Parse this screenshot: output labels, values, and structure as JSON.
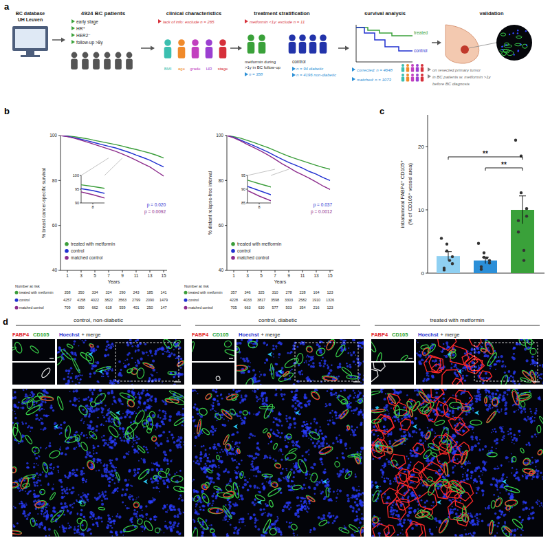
{
  "panel_labels": [
    "a",
    "b",
    "c",
    "d"
  ],
  "flow": {
    "database": [
      "BC database",
      "UH Leuven"
    ],
    "cohort": {
      "title": "4924 BC patients",
      "criteria": [
        "early stage",
        "HR⁺",
        "HER2⁻",
        "follow-up >8y"
      ]
    },
    "steps": [
      "clinical characteristics",
      "treatment stratification",
      "survival analysis",
      "validation"
    ],
    "clinical": {
      "exclusion": "lack of info: exclude n = 265",
      "variables": [
        "BMI",
        "age",
        "grade",
        "HR",
        "stage"
      ]
    },
    "stratification": {
      "exclusion": "metformin <1y: exclude n = 11",
      "treated": [
        "metformin during",
        ">1y in BC follow-up"
      ],
      "treated_n": "n = 358",
      "control": "control",
      "control_n": [
        "n = 94 diabetic",
        "n = 4196 non-diabetic"
      ]
    },
    "survival": {
      "curves": [
        "treated",
        "control"
      ],
      "cohorts": [
        "corrected: n = 4648",
        "matched: n = 1073"
      ]
    },
    "validation": [
      "on resected primary tumor",
      "in BC patients w. metformin >1y",
      "before BC diagnosis"
    ]
  },
  "chart_data": [
    {
      "type": "line",
      "x_label": "Years",
      "y_label": "% breast cancer-specific survival",
      "x": [
        0,
        1,
        2,
        3,
        4,
        5,
        6,
        7,
        8,
        9,
        10,
        11,
        12,
        13,
        14,
        15
      ],
      "series": [
        {
          "name": "treated with metformin",
          "color": "#3a9d3a",
          "values": [
            100,
            99.8,
            99.5,
            99,
            98.5,
            97.8,
            97.2,
            96.6,
            96,
            95.3,
            94.5,
            93.8,
            93,
            92.2,
            91.2,
            90
          ]
        },
        {
          "name": "control",
          "color": "#1f2fd0",
          "values": [
            100,
            99.6,
            99,
            98.3,
            97.6,
            96.8,
            96,
            95.2,
            94.5,
            93.5,
            92.5,
            91.3,
            90.2,
            89,
            87.5,
            86
          ]
        },
        {
          "name": "matched control",
          "color": "#8b2a8b",
          "values": [
            100,
            99.5,
            98.8,
            97.9,
            97,
            96,
            95,
            94,
            93,
            91.8,
            90.5,
            89,
            87.5,
            86,
            84,
            82
          ]
        }
      ],
      "xlim": [
        0,
        15.5
      ],
      "ylim": [
        40,
        100
      ],
      "xticks": [
        1,
        3,
        5,
        7,
        9,
        11,
        13,
        15
      ],
      "yticks": [
        40,
        60,
        80,
        100
      ],
      "legend": "lower left",
      "inset": {
        "xlim": [
          7,
          9
        ],
        "ylim": [
          90,
          100
        ],
        "xticks": [
          8
        ],
        "yticks": [
          90,
          95,
          100
        ]
      },
      "annotations": [
        {
          "text": "p = 0.020",
          "color": "#1f2fd0"
        },
        {
          "text": "p = 0.0092",
          "color": "#8b2a8b"
        }
      ],
      "number_at_risk": {
        "title": "Number at risk",
        "x": [
          1,
          3,
          5,
          7,
          9,
          11,
          13,
          15
        ],
        "rows": [
          [
            358,
            350,
            334,
            324,
            290,
            243,
            185,
            141
          ],
          [
            4257,
            4158,
            4022,
            3822,
            3563,
            2799,
            2090,
            1479
          ],
          [
            709,
            690,
            662,
            618,
            559,
            401,
            250,
            147
          ]
        ]
      }
    },
    {
      "type": "line",
      "x_label": "Years",
      "y_label": "% distant relapse-free interval",
      "x": [
        0,
        1,
        2,
        3,
        4,
        5,
        6,
        7,
        8,
        9,
        10,
        11,
        12,
        13,
        14,
        15
      ],
      "series": [
        {
          "name": "treated with metformin",
          "color": "#3a9d3a",
          "values": [
            100,
            99.5,
            98.8,
            97.8,
            96.8,
            95.7,
            94.6,
            93.3,
            92,
            90.8,
            89.7,
            88.7,
            87.7,
            86.7,
            85.8,
            85
          ]
        },
        {
          "name": "control",
          "color": "#1f2fd0",
          "values": [
            100,
            99.2,
            98,
            96.7,
            95.4,
            94,
            92.6,
            91,
            89.5,
            88,
            86.8,
            85.5,
            84,
            82.8,
            81.3,
            80
          ]
        },
        {
          "name": "matched control",
          "color": "#8b2a8b",
          "values": [
            100,
            99,
            97.6,
            96,
            94.5,
            93,
            91.3,
            89.5,
            87.5,
            85.8,
            84,
            82.5,
            81,
            79.3,
            77.5,
            76
          ]
        }
      ],
      "xlim": [
        0,
        15.5
      ],
      "ylim": [
        40,
        100
      ],
      "xticks": [
        1,
        3,
        5,
        7,
        9,
        11,
        13,
        15
      ],
      "yticks": [
        40,
        60,
        80,
        100
      ],
      "legend": "lower left",
      "inset": {
        "xlim": [
          7,
          9
        ],
        "ylim": [
          85,
          95
        ],
        "xticks": [
          8
        ],
        "yticks": [
          85,
          90,
          95
        ]
      },
      "annotations": [
        {
          "text": "p = 0.037",
          "color": "#1f2fd0"
        },
        {
          "text": "p = 0.0012",
          "color": "#8b2a8b"
        }
      ],
      "number_at_risk": {
        "title": "Number at risk",
        "x": [
          1,
          3,
          5,
          7,
          9,
          11,
          13,
          15
        ],
        "rows": [
          [
            357,
            346,
            325,
            310,
            278,
            228,
            164,
            123
          ],
          [
            4228,
            4033,
            3817,
            3598,
            3303,
            2582,
            1910,
            1326
          ],
          [
            705,
            663,
            630,
            577,
            503,
            354,
            216,
            123
          ]
        ]
      }
    },
    {
      "type": "bar",
      "y_label": [
        "intratumoral FABP4⁺ CD105⁺",
        "(% of CD105⁺ vessel area)"
      ],
      "categories": [
        "control, non-diabetic",
        "control, diabetic",
        "treated with metformin"
      ],
      "values": [
        2.7,
        2.0,
        10.0
      ],
      "errors": [
        0.7,
        0.5,
        2.2
      ],
      "points": [
        [
          5.5,
          4.6,
          3.5,
          2.6,
          1.5,
          0.8,
          0.5,
          2.0
        ],
        [
          4.7,
          3.2,
          2.5,
          2.0,
          1.6,
          1.0,
          0.6,
          2.4
        ],
        [
          21,
          18.5,
          12.7,
          10.2,
          9,
          8.3,
          6.5,
          3.6,
          2.0
        ]
      ],
      "colors": [
        "#8fd0f2",
        "#2b8fd8",
        "#3aa13a"
      ],
      "ylim": [
        0,
        25
      ],
      "yticks": [
        0,
        10,
        20
      ],
      "tick_labels": "y",
      "annotations": [
        {
          "text": "**",
          "between": [
            0,
            2
          ]
        },
        {
          "text": "**",
          "between": [
            1,
            2
          ]
        }
      ]
    }
  ],
  "micrographs": {
    "panels": [
      "control, non-diabetic",
      "control, diabetic",
      "treated with metformin"
    ],
    "channels": [
      "FABP4",
      "CD105"
    ],
    "merge_label": [
      "Hoechst",
      "+ merge"
    ],
    "asterisk": "*"
  }
}
